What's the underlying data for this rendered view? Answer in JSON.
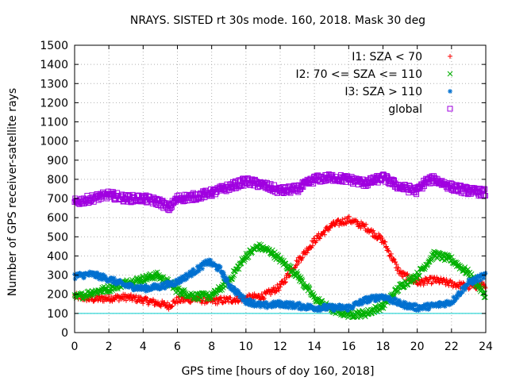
{
  "chart_data": {
    "type": "scatter",
    "title": "NRAYS. SISTED rt 30s mode. 160, 2018. Mask 30 deg",
    "xlabel": "GPS time [hours of doy 160, 2018]",
    "ylabel": "Number of GPS receiver-satellite rays",
    "xlim": [
      0,
      24
    ],
    "ylim": [
      0,
      1500
    ],
    "xticks": [
      "0",
      "2",
      "4",
      "6",
      "8",
      "10",
      "12",
      "14",
      "16",
      "18",
      "20",
      "22",
      "24"
    ],
    "yticks": [
      "0",
      "100",
      "200",
      "300",
      "400",
      "500",
      "600",
      "700",
      "800",
      "900",
      "1000",
      "1100",
      "1200",
      "1300",
      "1400",
      "1500"
    ],
    "grid": true,
    "legend_position": "top-right",
    "reference_line": {
      "y": 100,
      "color": "#00cccc"
    },
    "series": [
      {
        "name": "I1: SZA < 70",
        "marker": "+",
        "color": "#ff0000",
        "x": [
          0,
          1,
          2,
          3,
          4,
          5,
          5.5,
          6,
          7,
          8,
          9,
          10,
          11,
          12,
          13,
          14,
          15,
          16,
          17,
          18,
          19,
          20,
          21,
          22,
          23,
          24
        ],
        "y": [
          190,
          175,
          180,
          185,
          170,
          150,
          140,
          170,
          175,
          165,
          170,
          180,
          190,
          240,
          370,
          480,
          560,
          590,
          550,
          480,
          310,
          260,
          275,
          255,
          240,
          250
        ]
      },
      {
        "name": "I2: 70 <= SZA <= 110",
        "marker": "x",
        "color": "#00b000",
        "x": [
          0,
          1,
          2,
          3,
          4,
          4.8,
          5.5,
          6,
          7,
          8,
          9,
          10,
          10.7,
          11.5,
          12,
          13,
          14,
          15,
          16,
          17,
          18,
          19,
          20,
          21,
          22,
          23,
          24
        ],
        "y": [
          180,
          210,
          230,
          260,
          280,
          300,
          260,
          220,
          190,
          190,
          270,
          400,
          450,
          420,
          380,
          300,
          180,
          120,
          95,
          100,
          140,
          240,
          300,
          410,
          380,
          310,
          190
        ]
      },
      {
        "name": "I3: SZA > 110",
        "marker": "*",
        "color": "#0070d0",
        "x": [
          0,
          1,
          2,
          3,
          4,
          5,
          6,
          7,
          7.8,
          8.5,
          9,
          10,
          11,
          12,
          13,
          14,
          15,
          16,
          17,
          18,
          19,
          20,
          21,
          22,
          23,
          24
        ],
        "y": [
          295,
          305,
          280,
          245,
          230,
          240,
          265,
          320,
          370,
          330,
          250,
          165,
          140,
          150,
          140,
          130,
          130,
          130,
          170,
          190,
          150,
          130,
          140,
          160,
          260,
          300
        ]
      },
      {
        "name": "global",
        "marker": "square",
        "color": "#a000e0",
        "x": [
          0,
          1,
          2,
          3,
          4,
          5,
          5.5,
          6,
          7,
          8,
          9,
          10,
          11,
          12,
          13,
          14,
          15,
          16,
          17,
          18,
          19,
          20,
          20.5,
          21,
          22,
          23,
          24
        ],
        "y": [
          680,
          700,
          720,
          700,
          700,
          680,
          650,
          700,
          710,
          730,
          760,
          790,
          770,
          740,
          750,
          800,
          810,
          800,
          780,
          810,
          760,
          740,
          790,
          800,
          760,
          740,
          730
        ]
      }
    ]
  }
}
